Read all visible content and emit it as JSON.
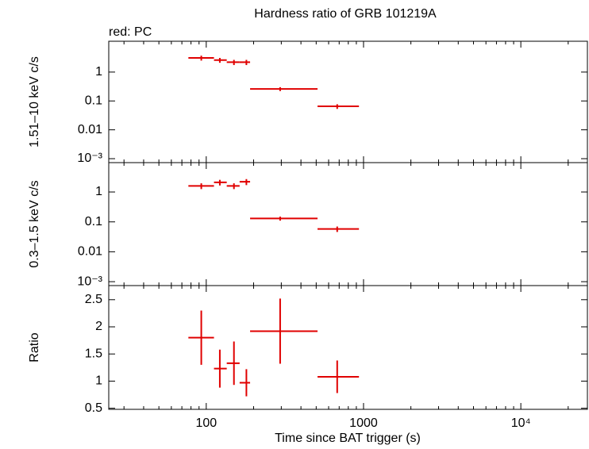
{
  "chart_data": [
    {
      "type": "errorbar",
      "title": "Hardness ratio of GRB 101219A",
      "annotation": "red: PC",
      "ylabel": "1.51–10 keV c/s",
      "log_y": true,
      "color": "#e00000",
      "x": [
        93,
        122,
        150,
        180,
        295,
        680
      ],
      "x_low": [
        77,
        112,
        135,
        163,
        190,
        510
      ],
      "x_high": [
        112,
        135,
        163,
        190,
        510,
        935
      ],
      "values": [
        3.1,
        2.6,
        2.2,
        2.2,
        0.26,
        0.065
      ],
      "yerr": [
        0.6,
        0.5,
        0.45,
        0.45,
        0.04,
        0.012
      ],
      "ylim": [
        0.00073,
        11.7
      ],
      "yticks": [
        {
          "value": 0.001,
          "label": "10⁻³"
        },
        0.01,
        0.1,
        1
      ]
    },
    {
      "type": "errorbar",
      "ylabel": "0.3–1.5 keV c/s",
      "log_y": true,
      "color": "#e00000",
      "x": [
        93,
        122,
        150,
        180,
        295,
        680
      ],
      "x_low": [
        77,
        112,
        135,
        163,
        190,
        510
      ],
      "x_high": [
        112,
        135,
        163,
        190,
        510,
        935
      ],
      "values": [
        1.6,
        2.1,
        1.6,
        2.2,
        0.13,
        0.058
      ],
      "yerr": [
        0.35,
        0.45,
        0.35,
        0.5,
        0.02,
        0.012
      ],
      "ylim": [
        0.00074,
        9.6
      ],
      "yticks": [
        {
          "value": 0.001,
          "label": "10⁻³"
        },
        0.01,
        0.1,
        1
      ]
    },
    {
      "type": "errorbar",
      "ylabel": "Ratio",
      "xlabel": "Time since BAT trigger (s)",
      "log_y": false,
      "color": "#e00000",
      "x": [
        93,
        122,
        150,
        180,
        295,
        680
      ],
      "x_low": [
        77,
        112,
        135,
        163,
        190,
        510
      ],
      "x_high": [
        112,
        135,
        163,
        190,
        510,
        935
      ],
      "values": [
        1.8,
        1.23,
        1.33,
        0.97,
        1.92,
        1.08
      ],
      "yerr": [
        0.5,
        0.35,
        0.4,
        0.25,
        0.6,
        0.3
      ],
      "ylim": [
        0.48,
        2.76
      ],
      "yticks": [
        0.5,
        1,
        1.5,
        2,
        2.5
      ],
      "log_x": true,
      "xlim": [
        24,
        26500
      ],
      "xticks": [
        100,
        1000,
        {
          "value": 10000,
          "label": "10⁴"
        }
      ]
    }
  ]
}
